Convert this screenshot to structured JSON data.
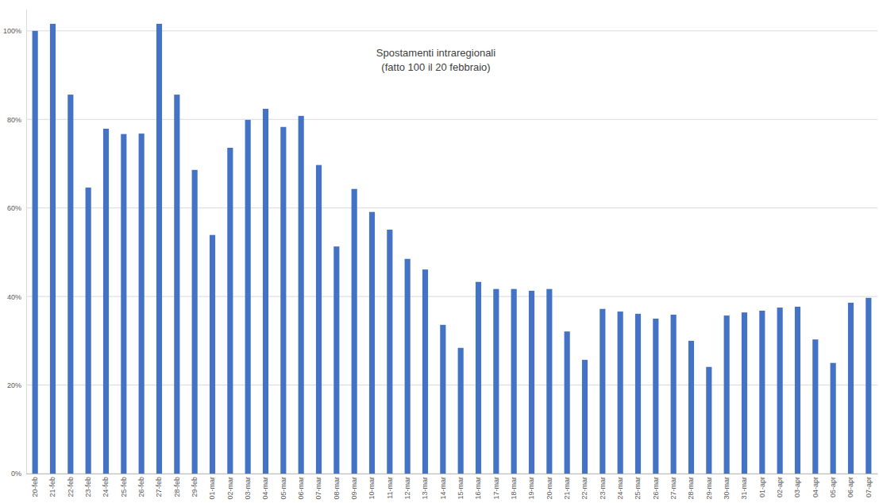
{
  "chart_data": {
    "type": "bar",
    "title": "Spostamenti intraregionali",
    "subtitle": "(fatto 100 il 20 febbraio)",
    "categories": [
      "20-feb",
      "21-feb",
      "22-feb",
      "23-feb",
      "24-feb",
      "25-feb",
      "26-feb",
      "27-feb",
      "28-feb",
      "29-feb",
      "01-mar",
      "02-mar",
      "03-mar",
      "04-mar",
      "05-mar",
      "06-mar",
      "07-mar",
      "08-mar",
      "09-mar",
      "10-mar",
      "11-mar",
      "12-mar",
      "13-mar",
      "14-mar",
      "15-mar",
      "16-mar",
      "17-mar",
      "18-mar",
      "19-mar",
      "20-mar",
      "21-mar",
      "22-mar",
      "23-mar",
      "24-mar",
      "25-mar",
      "26-mar",
      "27-mar",
      "28-mar",
      "29-mar",
      "30-mar",
      "31-mar",
      "01-apr",
      "02-apr",
      "03-apr",
      "04-apr",
      "05-apr",
      "06-apr",
      "07-apr"
    ],
    "values": [
      100,
      101.6,
      85.6,
      64.6,
      77.9,
      76.7,
      76.8,
      101.6,
      85.6,
      68.6,
      53.9,
      73.6,
      79.9,
      82.4,
      78.3,
      80.8,
      69.7,
      51.3,
      64.3,
      59.1,
      55.1,
      48.5,
      46.1,
      33.6,
      28.4,
      43.3,
      41.7,
      41.7,
      41.3,
      41.7,
      32.1,
      25.7,
      37.2,
      36.6,
      36.1,
      35.0,
      35.9,
      30.0,
      24.1,
      35.7,
      36.4,
      36.8,
      37.5,
      37.7,
      30.3,
      25.0,
      38.6,
      39.7
    ],
    "color": "#4472c4",
    "ylim": [
      0,
      105
    ],
    "yticks": [
      {
        "value": 0,
        "label": "0%"
      },
      {
        "value": 20,
        "label": "20%"
      },
      {
        "value": 40,
        "label": "40%"
      },
      {
        "value": 60,
        "label": "60%"
      },
      {
        "value": 80,
        "label": "80%"
      },
      {
        "value": 100,
        "label": "100%"
      }
    ],
    "grid": true
  }
}
